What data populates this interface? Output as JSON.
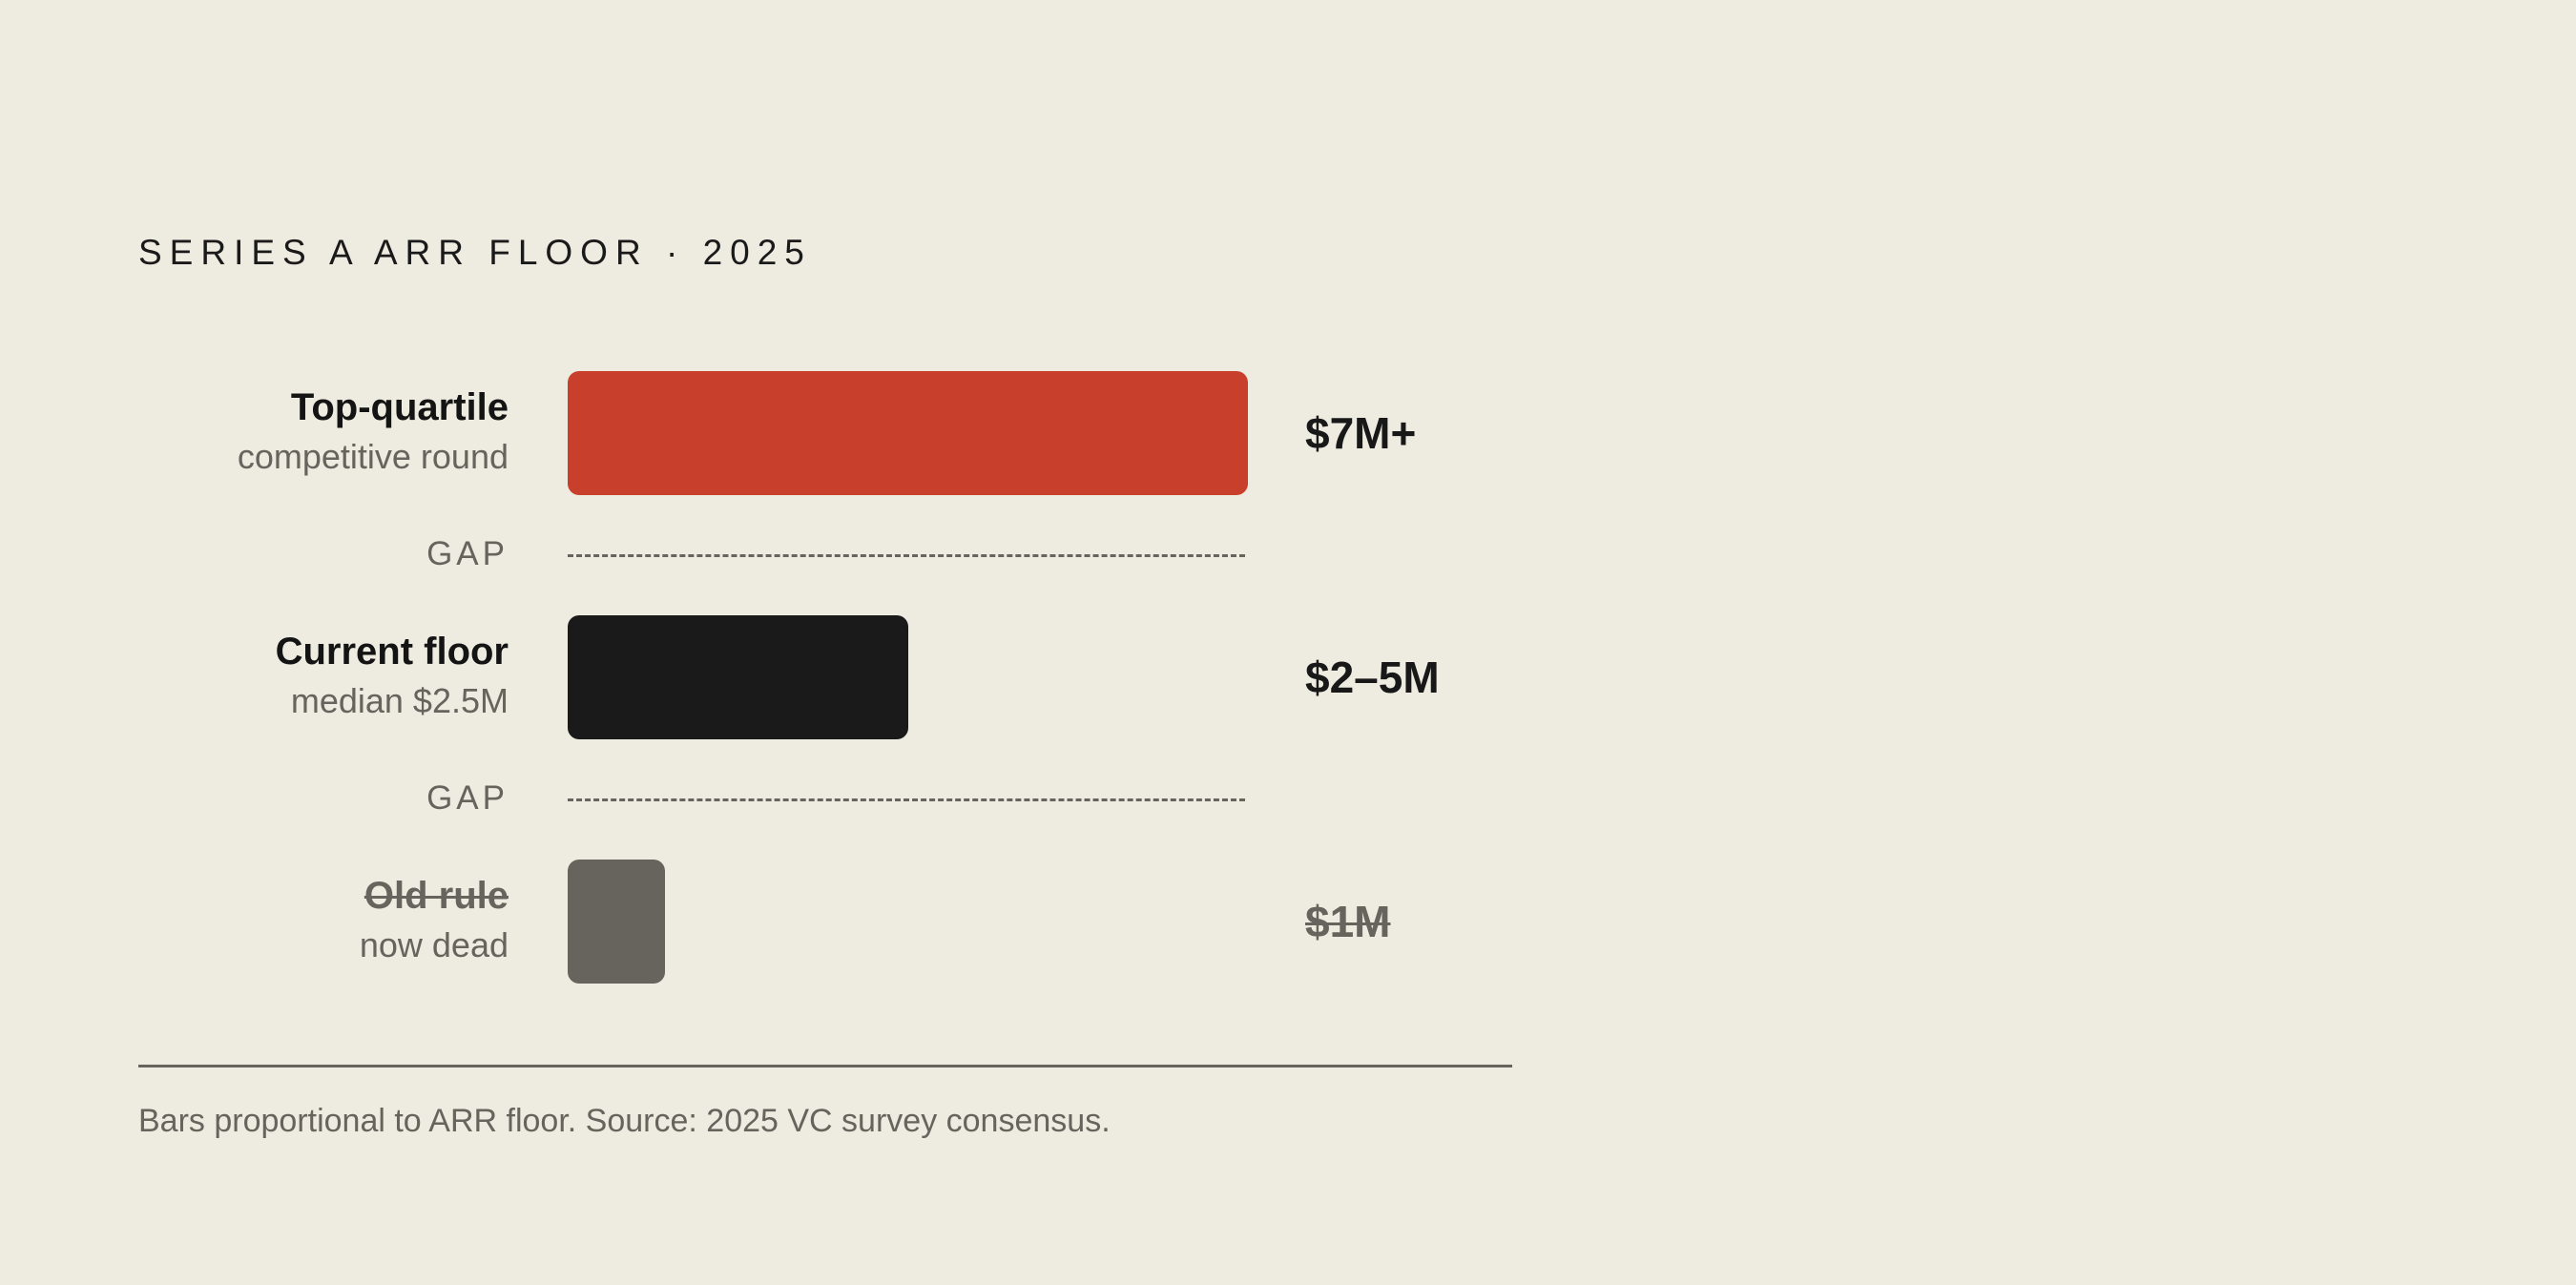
{
  "chart_data": {
    "type": "bar",
    "orientation": "horizontal",
    "title": "SERIES A ARR FLOOR · 2025",
    "categories": [
      "Top-quartile",
      "Current floor",
      "Old rule"
    ],
    "subtitles": [
      "competitive round",
      "median $2.5M",
      "now dead"
    ],
    "value_labels": [
      "$7M+",
      "$2–5M",
      "$1M"
    ],
    "values": [
      7,
      3.5,
      1
    ],
    "unit": "$M ARR",
    "xlim": [
      0,
      7
    ],
    "colors": [
      "#c8402b",
      "#1a1a1a",
      "#66645d"
    ],
    "struck": [
      false,
      false,
      true
    ],
    "gap_label": "GAP",
    "gap_label_count": 2,
    "footnote": "Bars proportional to ARR floor. Source: 2025 VC survey consensus.",
    "grid": false,
    "legend": "none"
  }
}
